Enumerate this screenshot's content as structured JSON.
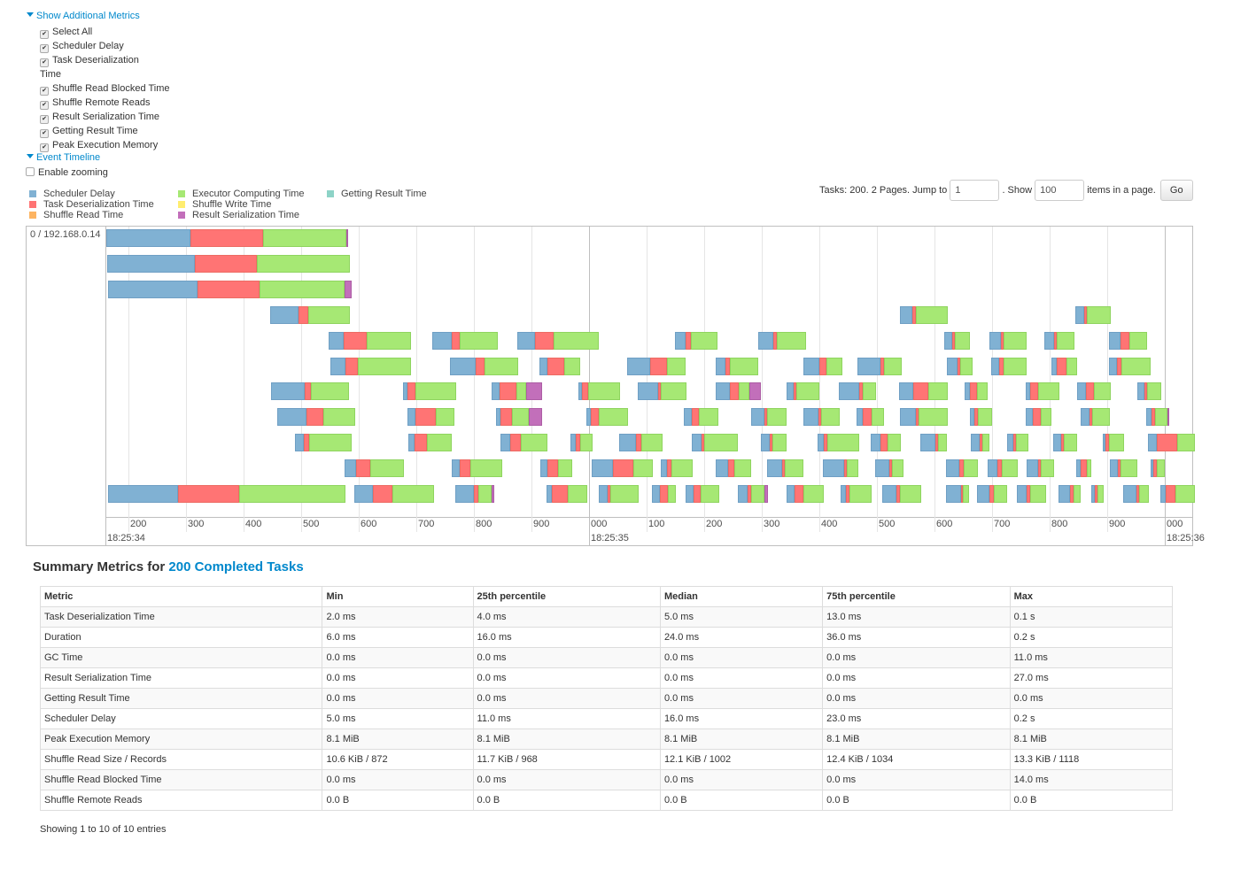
{
  "metrics_toggle": "Show Additional Metrics",
  "metrics_options": [
    {
      "label": "Select All",
      "checked": true
    },
    {
      "label": "Scheduler Delay",
      "checked": true
    },
    {
      "label": "Task Deserialization",
      "label2": "Time",
      "checked": true
    },
    {
      "label": "Shuffle Read Blocked Time",
      "checked": true
    },
    {
      "label": "Shuffle Remote Reads",
      "checked": true
    },
    {
      "label": "Result Serialization Time",
      "checked": true
    },
    {
      "label": "Getting Result Time",
      "checked": true
    },
    {
      "label": "Peak Execution Memory",
      "checked": true
    }
  ],
  "timeline_toggle": "Event Timeline",
  "enable_zooming": {
    "label": "Enable zooming",
    "checked": false
  },
  "legend": [
    {
      "label": "Scheduler Delay",
      "color": "#80b1d3"
    },
    {
      "label": "Task Deserialization Time",
      "color": "#ff7474"
    },
    {
      "label": "Shuffle Read Time",
      "color": "#fdb462"
    },
    {
      "label": "Executor Computing Time",
      "color": "#a6e874"
    },
    {
      "label": "Shuffle Write Time",
      "color": "#ffed6f"
    },
    {
      "label": "Result Serialization Time",
      "color": "#c26fba"
    },
    {
      "label": "Getting Result Time",
      "color": "#8dd3c7"
    }
  ],
  "pager": {
    "prefix": "Tasks: 200. 2 Pages. Jump to",
    "page_value": "1",
    "mid": ". Show",
    "size_value": "100",
    "suffix": "items in a page.",
    "go": "Go"
  },
  "timeline": {
    "executor": "0 / 192.168.0.14",
    "range_ms": [
      161.5,
      2051
    ],
    "minor_ticks": [
      {
        "ms": 200,
        "label": "200"
      },
      {
        "ms": 300,
        "label": "300"
      },
      {
        "ms": 400,
        "label": "400"
      },
      {
        "ms": 500,
        "label": "500"
      },
      {
        "ms": 600,
        "label": "600"
      },
      {
        "ms": 700,
        "label": "700"
      },
      {
        "ms": 800,
        "label": "800"
      },
      {
        "ms": 900,
        "label": "900"
      },
      {
        "ms": 1000,
        "label": "000"
      },
      {
        "ms": 1100,
        "label": "100"
      },
      {
        "ms": 1200,
        "label": "200"
      },
      {
        "ms": 1300,
        "label": "300"
      },
      {
        "ms": 1400,
        "label": "400"
      },
      {
        "ms": 1500,
        "label": "500"
      },
      {
        "ms": 1600,
        "label": "600"
      },
      {
        "ms": 1700,
        "label": "700"
      },
      {
        "ms": 1800,
        "label": "800"
      },
      {
        "ms": 1900,
        "label": "900"
      },
      {
        "ms": 2000,
        "label": "000"
      }
    ],
    "major_ticks": [
      {
        "ms": 161.5,
        "label": "18:25:34",
        "line": false
      },
      {
        "ms": 1000,
        "label": "18:25:35",
        "line": true
      },
      {
        "ms": 2000,
        "label": "18:25:36",
        "line": true
      }
    ],
    "segment_order": [
      "Scheduler Delay",
      "Task Deserialization Time",
      "Executor Computing Time",
      "Result Serialization Time"
    ],
    "tasks": [
      [
        0,
        162,
        308,
        434,
        578,
        582
      ],
      [
        1,
        163,
        315,
        423,
        585
      ],
      [
        2,
        165,
        320,
        428,
        575,
        588
      ],
      [
        3,
        446,
        495,
        512,
        585
      ],
      [
        3,
        1540,
        1562,
        1568,
        1623
      ],
      [
        3,
        1845,
        1860,
        1865,
        1906
      ],
      [
        4,
        548,
        574,
        614,
        691
      ],
      [
        4,
        728,
        762,
        775,
        842
      ],
      [
        4,
        875,
        906,
        938,
        1017
      ],
      [
        4,
        1149,
        1168,
        1177,
        1223
      ],
      [
        4,
        1294,
        1320,
        1326,
        1377
      ],
      [
        4,
        1617,
        1631,
        1635,
        1662
      ],
      [
        4,
        1695,
        1715,
        1720,
        1760
      ],
      [
        4,
        1791,
        1808,
        1812,
        1843
      ],
      [
        4,
        1903,
        1923,
        1938,
        1969
      ],
      [
        5,
        551,
        577,
        598,
        691
      ],
      [
        5,
        758,
        803,
        818,
        877
      ],
      [
        5,
        914,
        928,
        957,
        985
      ],
      [
        5,
        1066,
        1106,
        1135,
        1168
      ],
      [
        5,
        1220,
        1237,
        1245,
        1294
      ],
      [
        5,
        1372,
        1400,
        1412,
        1440
      ],
      [
        5,
        1466,
        1506,
        1512,
        1543
      ],
      [
        5,
        1622,
        1640,
        1645,
        1666
      ],
      [
        5,
        1698,
        1712,
        1720,
        1760
      ],
      [
        5,
        1803,
        1812,
        1829,
        1848
      ],
      [
        5,
        1903,
        1917,
        1925,
        1975
      ],
      [
        6,
        448,
        506,
        517,
        583
      ],
      [
        6,
        677,
        685,
        698,
        769
      ],
      [
        6,
        831,
        845,
        874,
        891,
        918
      ],
      [
        6,
        982,
        988,
        998,
        1054
      ],
      [
        6,
        1085,
        1120,
        1125,
        1169
      ],
      [
        6,
        1220,
        1245,
        1260,
        1278,
        1298
      ],
      [
        6,
        1343,
        1355,
        1360,
        1400
      ],
      [
        6,
        1434,
        1469,
        1475,
        1498
      ],
      [
        6,
        1538,
        1563,
        1589,
        1623
      ],
      [
        6,
        1652,
        1662,
        1674,
        1692
      ],
      [
        6,
        1758,
        1766,
        1780,
        1817
      ],
      [
        6,
        1848,
        1863,
        1877,
        1906
      ],
      [
        6,
        1952,
        1965,
        1969,
        1994
      ],
      [
        7,
        458,
        509,
        538,
        594
      ],
      [
        7,
        685,
        698,
        734,
        766
      ],
      [
        7,
        838,
        846,
        866,
        895,
        918
      ],
      [
        7,
        995,
        1003,
        1017,
        1068
      ],
      [
        7,
        1165,
        1178,
        1191,
        1225
      ],
      [
        7,
        1282,
        1305,
        1309,
        1343
      ],
      [
        7,
        1372,
        1398,
        1403,
        1435
      ],
      [
        7,
        1465,
        1475,
        1491,
        1512
      ],
      [
        7,
        1540,
        1568,
        1572,
        1623
      ],
      [
        7,
        1662,
        1669,
        1675,
        1700
      ],
      [
        7,
        1758,
        1771,
        1785,
        1803
      ],
      [
        7,
        1854,
        1869,
        1874,
        1905
      ],
      [
        7,
        1968,
        1977,
        1983,
        2005,
        2008
      ],
      [
        8,
        489,
        505,
        514,
        588
      ],
      [
        8,
        686,
        697,
        718,
        762
      ],
      [
        8,
        846,
        863,
        882,
        928
      ],
      [
        8,
        968,
        977,
        985,
        1006
      ],
      [
        8,
        1052,
        1082,
        1091,
        1128
      ],
      [
        8,
        1178,
        1195,
        1200,
        1258
      ],
      [
        8,
        1298,
        1314,
        1318,
        1343
      ],
      [
        8,
        1397,
        1408,
        1414,
        1469
      ],
      [
        8,
        1489,
        1506,
        1518,
        1542
      ],
      [
        8,
        1575,
        1602,
        1606,
        1622
      ],
      [
        8,
        1663,
        1679,
        1683,
        1695
      ],
      [
        8,
        1726,
        1737,
        1742,
        1763
      ],
      [
        8,
        1806,
        1820,
        1825,
        1848
      ],
      [
        8,
        1892,
        1897,
        1903,
        1929
      ],
      [
        8,
        1971,
        1986,
        2022,
        2052
      ],
      [
        9,
        575,
        595,
        620,
        678
      ],
      [
        9,
        762,
        775,
        794,
        849
      ],
      [
        9,
        915,
        928,
        946,
        971
      ],
      [
        9,
        1005,
        1042,
        1077,
        1111
      ],
      [
        9,
        1125,
        1135,
        1143,
        1180
      ],
      [
        9,
        1220,
        1242,
        1252,
        1282
      ],
      [
        9,
        1309,
        1335,
        1340,
        1372
      ],
      [
        9,
        1406,
        1443,
        1448,
        1468
      ],
      [
        9,
        1497,
        1522,
        1526,
        1546
      ],
      [
        9,
        1620,
        1643,
        1651,
        1675
      ],
      [
        9,
        1692,
        1709,
        1717,
        1745
      ],
      [
        9,
        1760,
        1780,
        1785,
        1808
      ],
      [
        9,
        1846,
        1854,
        1865,
        1872
      ],
      [
        9,
        1905,
        1918,
        1923,
        1952
      ],
      [
        9,
        1975,
        1980,
        1986,
        2000
      ],
      [
        10,
        165,
        286,
        392,
        577
      ],
      [
        10,
        592,
        625,
        658,
        731
      ],
      [
        10,
        768,
        800,
        808,
        831,
        835
      ],
      [
        10,
        926,
        935,
        963,
        997
      ],
      [
        10,
        1017,
        1032,
        1037,
        1086
      ],
      [
        10,
        1109,
        1123,
        1137,
        1151
      ],
      [
        10,
        1168,
        1182,
        1194,
        1226
      ],
      [
        10,
        1258,
        1275,
        1282,
        1305,
        1311
      ],
      [
        10,
        1343,
        1357,
        1372,
        1408
      ],
      [
        10,
        1437,
        1446,
        1452,
        1491
      ],
      [
        10,
        1509,
        1534,
        1540,
        1577
      ],
      [
        10,
        1620,
        1646,
        1649,
        1660
      ],
      [
        10,
        1674,
        1695,
        1703,
        1726
      ],
      [
        10,
        1743,
        1760,
        1766,
        1794
      ],
      [
        10,
        1815,
        1835,
        1842,
        1854
      ],
      [
        10,
        1872,
        1878,
        1883,
        1894
      ],
      [
        10,
        1928,
        1951,
        1955,
        1972
      ],
      [
        10,
        1992,
        2002,
        2018,
        2052
      ]
    ]
  },
  "summary": {
    "title_prefix": "Summary Metrics for",
    "title_link": "200 Completed Tasks",
    "columns": [
      "Metric",
      "Min",
      "25th percentile",
      "Median",
      "75th percentile",
      "Max"
    ],
    "rows": [
      [
        "Task Deserialization Time",
        "2.0 ms",
        "4.0 ms",
        "5.0 ms",
        "13.0 ms",
        "0.1 s"
      ],
      [
        "Duration",
        "6.0 ms",
        "16.0 ms",
        "24.0 ms",
        "36.0 ms",
        "0.2 s"
      ],
      [
        "GC Time",
        "0.0 ms",
        "0.0 ms",
        "0.0 ms",
        "0.0 ms",
        "11.0 ms"
      ],
      [
        "Result Serialization Time",
        "0.0 ms",
        "0.0 ms",
        "0.0 ms",
        "0.0 ms",
        "27.0 ms"
      ],
      [
        "Getting Result Time",
        "0.0 ms",
        "0.0 ms",
        "0.0 ms",
        "0.0 ms",
        "0.0 ms"
      ],
      [
        "Scheduler Delay",
        "5.0 ms",
        "11.0 ms",
        "16.0 ms",
        "23.0 ms",
        "0.2 s"
      ],
      [
        "Peak Execution Memory",
        "8.1 MiB",
        "8.1 MiB",
        "8.1 MiB",
        "8.1 MiB",
        "8.1 MiB"
      ],
      [
        "Shuffle Read Size / Records",
        "10.6 KiB / 872",
        "11.7 KiB / 968",
        "12.1 KiB / 1002",
        "12.4 KiB / 1034",
        "13.3 KiB / 1118"
      ],
      [
        "Shuffle Read Blocked Time",
        "0.0 ms",
        "0.0 ms",
        "0.0 ms",
        "0.0 ms",
        "14.0 ms"
      ],
      [
        "Shuffle Remote Reads",
        "0.0 B",
        "0.0 B",
        "0.0 B",
        "0.0 B",
        "0.0 B"
      ]
    ],
    "footer": "Showing 1 to 10 of 10 entries"
  }
}
